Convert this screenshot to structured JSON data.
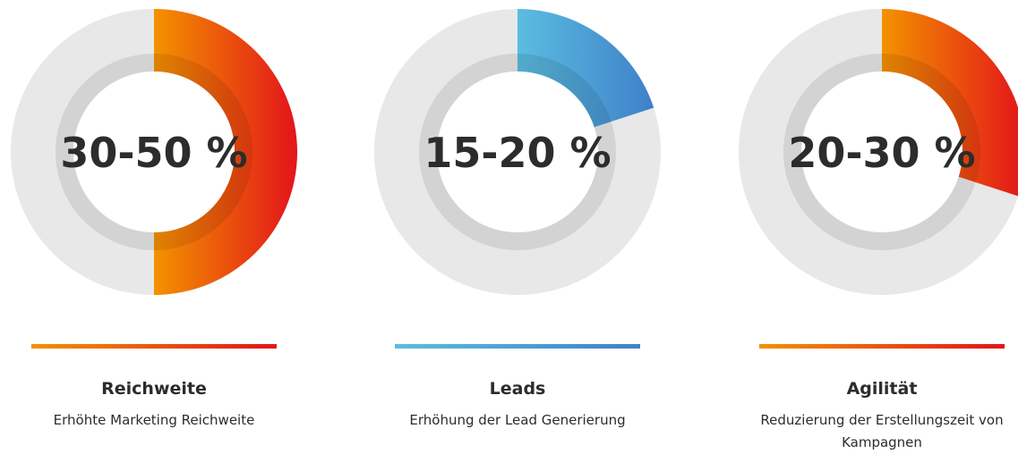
{
  "cards": [
    {
      "value_text": "30-50 %",
      "share": 50,
      "title": "Reichweite",
      "subtitle": "Erhöhte Marketing Reichweite",
      "colors": [
        "#f39200",
        "#e3141a"
      ]
    },
    {
      "value_text": "15-20 %",
      "share": 20,
      "title": "Leads",
      "subtitle": "Erhöhung der Lead Generierung",
      "colors": [
        "#5bbde0",
        "#3f80c9"
      ]
    },
    {
      "value_text": "20-30 %",
      "share": 30,
      "title": "Agilität",
      "subtitle": "Reduzierung der Erstellungszeit von Kampagnen",
      "colors": [
        "#f39200",
        "#e3141a"
      ]
    }
  ]
}
